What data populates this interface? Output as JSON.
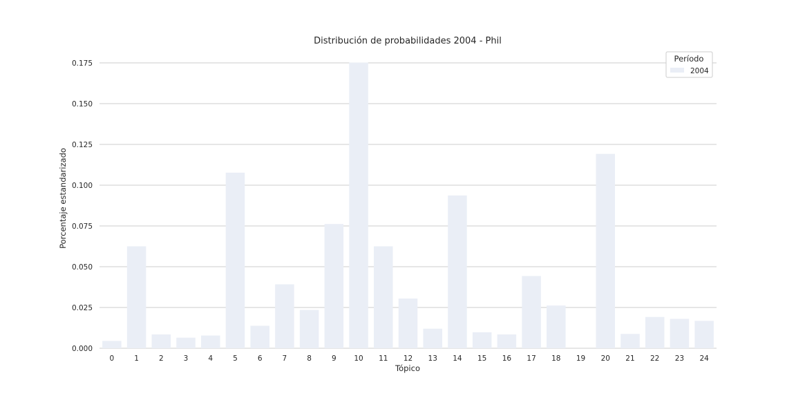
{
  "chart_data": {
    "type": "bar",
    "title": "Distribución de probabilidades 2004 - Phil",
    "xlabel": "Tópico",
    "ylabel": "Porcentaje estandarizado",
    "ylim": [
      0,
      0.175
    ],
    "yticks": [
      "0.000",
      "0.025",
      "0.050",
      "0.075",
      "0.100",
      "0.125",
      "0.150",
      "0.175"
    ],
    "grid": true,
    "legend": {
      "title": "Período",
      "placement": "top-right"
    },
    "categories": [
      "0",
      "1",
      "2",
      "3",
      "4",
      "5",
      "6",
      "7",
      "8",
      "9",
      "10",
      "11",
      "12",
      "13",
      "14",
      "15",
      "16",
      "17",
      "18",
      "19",
      "20",
      "21",
      "22",
      "23",
      "24"
    ],
    "series": [
      {
        "name": "2004",
        "color": "#eaeef6",
        "values": [
          0.0045,
          0.0625,
          0.0085,
          0.0065,
          0.0078,
          0.1077,
          0.0138,
          0.0392,
          0.0235,
          0.0762,
          0.1752,
          0.0625,
          0.0305,
          0.012,
          0.0937,
          0.0098,
          0.0085,
          0.0443,
          0.0262,
          0.0,
          0.1192,
          0.0088,
          0.0192,
          0.018,
          0.0168
        ]
      }
    ]
  }
}
